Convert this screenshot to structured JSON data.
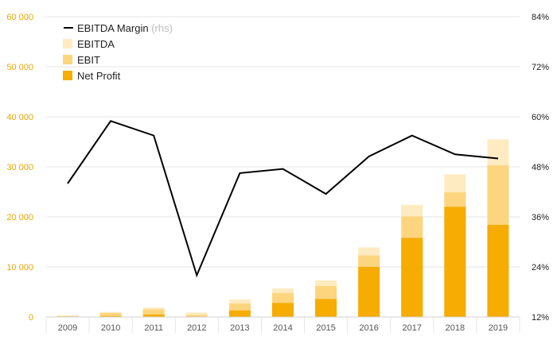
{
  "chart_data": {
    "type": "bar",
    "stacked": true,
    "categories": [
      "2009",
      "2010",
      "2011",
      "2012",
      "2013",
      "2014",
      "2015",
      "2016",
      "2017",
      "2018",
      "2019"
    ],
    "series": [
      {
        "name": "Net Profit",
        "color": "#f6ac00",
        "values": [
          0,
          200,
          500,
          100,
          1300,
          2800,
          3600,
          10000,
          15800,
          22000,
          18400
        ]
      },
      {
        "name": "EBIT",
        "color": "#fdd57e",
        "values": [
          200,
          800,
          1500,
          400,
          2700,
          4800,
          6200,
          12300,
          20100,
          24900,
          30300
        ]
      },
      {
        "name": "EBITDA",
        "color": "#feebc1",
        "values": [
          300,
          1000,
          1900,
          900,
          3500,
          5700,
          7300,
          13900,
          22400,
          28500,
          35500
        ]
      }
    ],
    "line": {
      "name": "EBITDA Margin",
      "note": "(rhs)",
      "color": "#000000",
      "values": [
        44,
        59,
        55.5,
        22,
        46.5,
        47.5,
        41.5,
        50.5,
        55.5,
        51,
        50
      ]
    },
    "ylim_left": [
      0,
      60000
    ],
    "yticks_left": [
      0,
      10000,
      20000,
      30000,
      40000,
      50000,
      60000
    ],
    "ytick_labels_left": [
      "0",
      "10 000",
      "20 000",
      "30 000",
      "40 000",
      "50 000",
      "60 000"
    ],
    "ylim_right": [
      12,
      84
    ],
    "yticks_right": [
      12,
      24,
      36,
      48,
      60,
      72,
      84
    ],
    "ytick_labels_right": [
      "12%",
      "24%",
      "36%",
      "48%",
      "60%",
      "72%",
      "84%"
    ],
    "grid": true,
    "legend_position": "top-left"
  }
}
